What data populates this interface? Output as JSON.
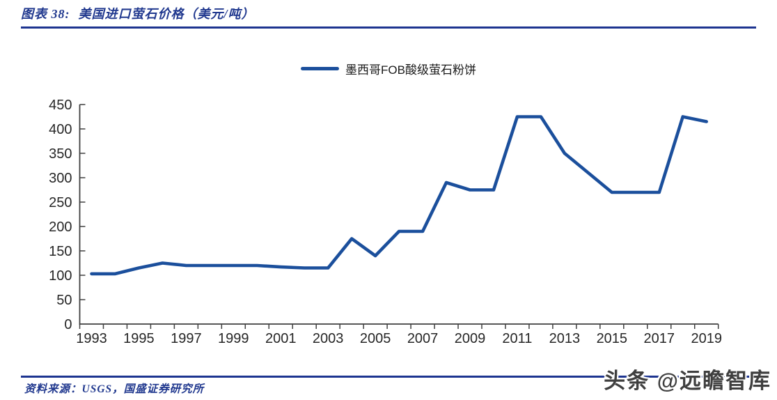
{
  "figure": {
    "label": "图表 38:",
    "title": "美国进口萤石价格（美元/吨）"
  },
  "chart_data": {
    "type": "line",
    "title": "美国进口萤石价格（美元/吨）",
    "xlabel": "",
    "ylabel": "",
    "ylim": [
      0,
      450
    ],
    "y_tick_step": 50,
    "x_label_every": 2,
    "grid": false,
    "legend_position": "top-center",
    "categories": [
      "1993",
      "1994",
      "1995",
      "1996",
      "1997",
      "1998",
      "1999",
      "2000",
      "2001",
      "2002",
      "2003",
      "2004",
      "2005",
      "2006",
      "2007",
      "2008",
      "2009",
      "2010",
      "2011",
      "2012",
      "2013",
      "2014",
      "2015",
      "2016",
      "2017",
      "2018",
      "2019"
    ],
    "series": [
      {
        "name": "墨西哥FOB酸级萤石粉饼",
        "color": "#1B4F9C",
        "values": [
          103,
          103,
          115,
          125,
          120,
          120,
          120,
          120,
          117,
          115,
          115,
          175,
          140,
          190,
          190,
          290,
          275,
          275,
          425,
          425,
          350,
          310,
          270,
          270,
          270,
          425,
          415
        ]
      }
    ]
  },
  "footer": {
    "source": "资料来源：USGS，国盛证券研究所",
    "watermark": "头条 @远瞻智库"
  },
  "colors": {
    "accent_blue": "#1B4F9C",
    "title_blue": "#21398F",
    "rule_blue": "#1D3490",
    "axis_color": "#3F3F3F",
    "label_color": "#262626",
    "watermark_gray": "#3F3F3F"
  }
}
